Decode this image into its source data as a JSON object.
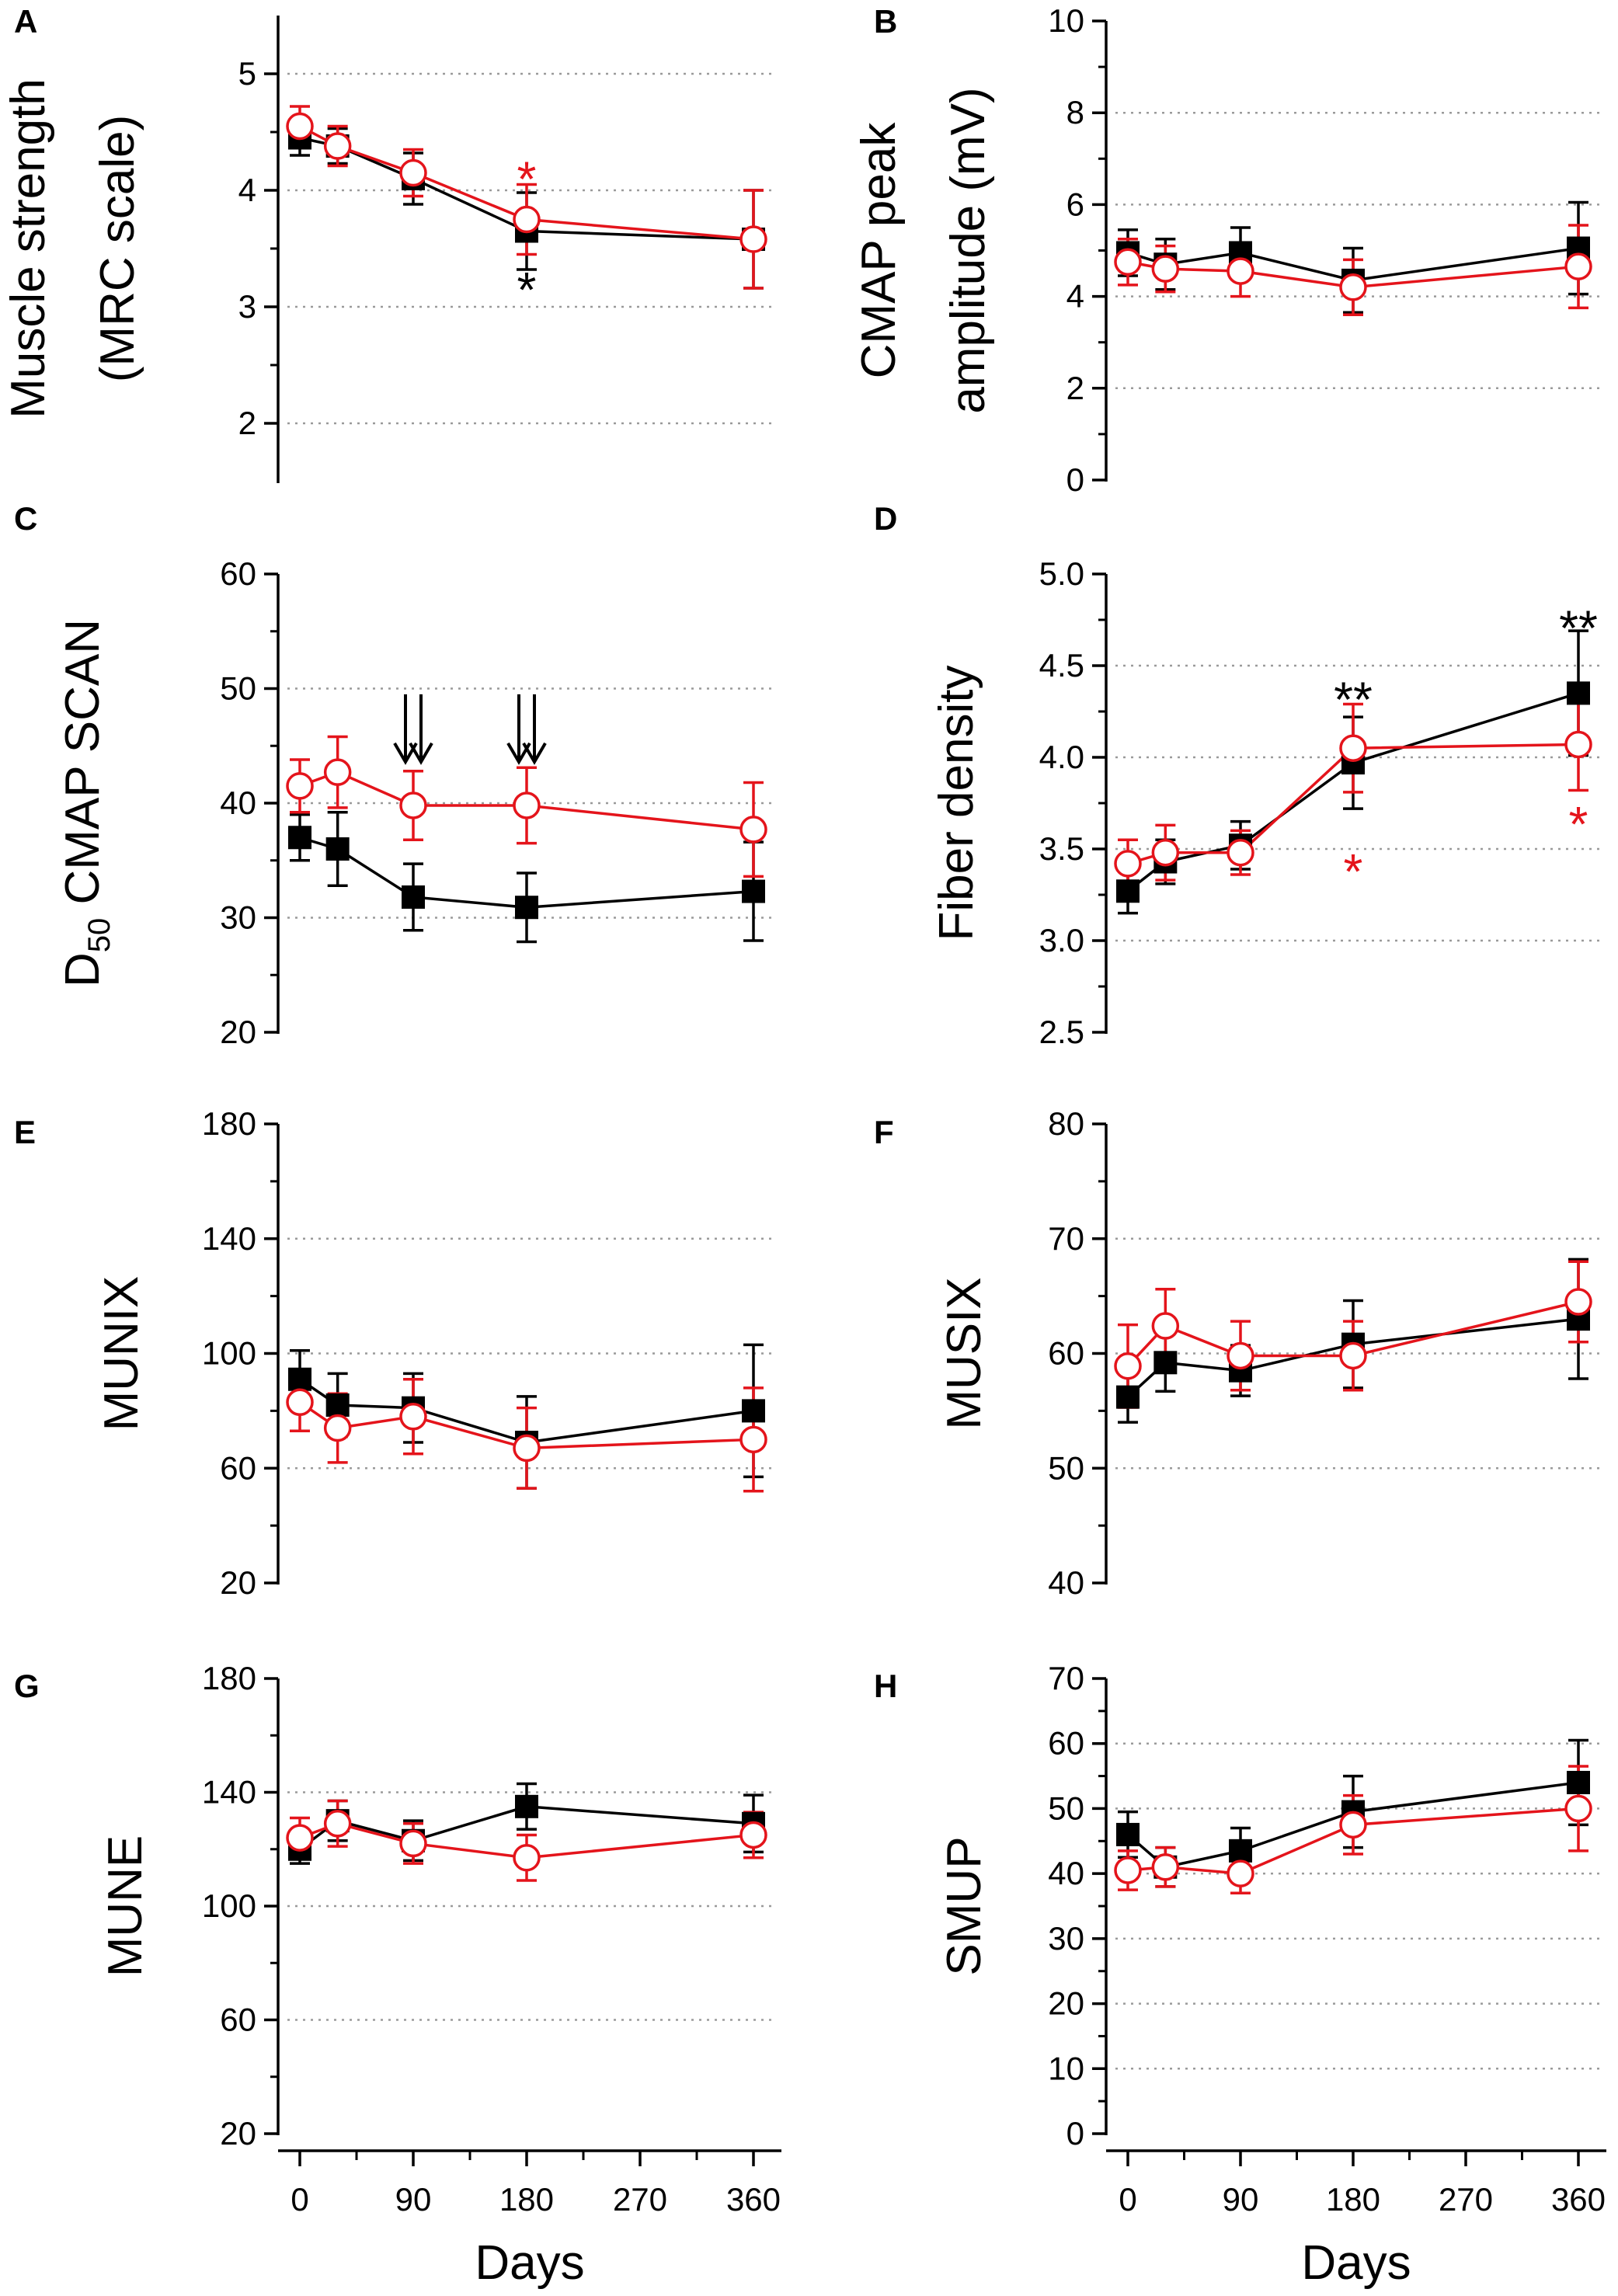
{
  "colors": {
    "black_series": "#000000",
    "red_series": "#e4141b",
    "grid": "#9a9a9a"
  },
  "x_axis_label": "Days",
  "chart_data": [
    {
      "id": "A",
      "type": "line",
      "panel_label": "A",
      "ylabel_lines": [
        "Muscle strength",
        "(MRC scale)"
      ],
      "ylim": [
        1.5,
        5.5
      ],
      "yticks": [
        {
          "v": 2,
          "t": "2"
        },
        {
          "v": 3,
          "t": "3"
        },
        {
          "v": 4,
          "t": "4"
        },
        {
          "v": 5,
          "t": "5"
        }
      ],
      "grid": [
        2,
        3,
        4,
        5
      ],
      "series": [
        {
          "name": "black",
          "marker": "square",
          "x": [
            0,
            30,
            90,
            180,
            360
          ],
          "y": [
            4.45,
            4.38,
            4.1,
            3.65,
            3.58
          ],
          "err": [
            0.15,
            0.15,
            0.22,
            0.33,
            0.42
          ]
        },
        {
          "name": "red",
          "marker": "circle",
          "x": [
            0,
            30,
            90,
            180,
            360
          ],
          "y": [
            4.55,
            4.38,
            4.15,
            3.75,
            3.58
          ],
          "err": [
            0.17,
            0.17,
            0.2,
            0.3,
            0.42
          ]
        }
      ],
      "annotations": [
        {
          "x": 180,
          "y": 4.15,
          "text": "*",
          "color": "red"
        },
        {
          "x": 180,
          "y": 3.2,
          "text": "*",
          "color": "black"
        }
      ],
      "arrows": []
    },
    {
      "id": "B",
      "type": "line",
      "panel_label": "B",
      "ylabel_lines": [
        "CMAP peak",
        "amplitude (mV)"
      ],
      "ylim": [
        0,
        10
      ],
      "yticks": [
        {
          "v": 0,
          "t": "0"
        },
        {
          "v": 2,
          "t": "2"
        },
        {
          "v": 4,
          "t": "4"
        },
        {
          "v": 6,
          "t": "6"
        },
        {
          "v": 8,
          "t": "8"
        },
        {
          "v": 10,
          "t": "10"
        }
      ],
      "grid": [
        2,
        4,
        6,
        8
      ],
      "series": [
        {
          "name": "black",
          "marker": "square",
          "x": [
            0,
            30,
            90,
            180,
            360
          ],
          "y": [
            4.95,
            4.7,
            4.95,
            4.35,
            5.05
          ],
          "err": [
            0.5,
            0.55,
            0.55,
            0.7,
            1.0
          ]
        },
        {
          "name": "red",
          "marker": "circle",
          "x": [
            0,
            30,
            90,
            180,
            360
          ],
          "y": [
            4.75,
            4.6,
            4.55,
            4.2,
            4.65
          ],
          "err": [
            0.5,
            0.5,
            0.55,
            0.6,
            0.9
          ]
        }
      ],
      "annotations": [],
      "arrows": []
    },
    {
      "id": "C",
      "type": "line",
      "panel_label": "C",
      "ylabel_main": "D",
      "ylabel_sub": "50",
      "ylabel_rest": " CMAP SCAN",
      "ylim": [
        20,
        60
      ],
      "yticks": [
        {
          "v": 20,
          "t": "20"
        },
        {
          "v": 30,
          "t": "30"
        },
        {
          "v": 40,
          "t": "40"
        },
        {
          "v": 50,
          "t": "50"
        },
        {
          "v": 60,
          "t": "60"
        }
      ],
      "grid": [
        30,
        40,
        50
      ],
      "series": [
        {
          "name": "black",
          "marker": "square",
          "x": [
            0,
            30,
            90,
            180,
            360
          ],
          "y": [
            37.0,
            36.0,
            31.8,
            30.9,
            32.3
          ],
          "err": [
            2.0,
            3.2,
            2.9,
            3.0,
            4.3
          ]
        },
        {
          "name": "red",
          "marker": "circle",
          "x": [
            0,
            30,
            90,
            180,
            360
          ],
          "y": [
            41.5,
            42.7,
            39.8,
            39.8,
            37.7
          ],
          "err": [
            2.3,
            3.1,
            3.0,
            3.3,
            4.1
          ]
        }
      ],
      "annotations": [],
      "arrows": [
        {
          "x": 90,
          "y_top": 49.5,
          "y_tip": 43.6
        },
        {
          "x": 180,
          "y_top": 49.5,
          "y_tip": 43.6
        }
      ]
    },
    {
      "id": "D",
      "type": "line",
      "panel_label": "D",
      "ylabel_lines": [
        "Fiber density"
      ],
      "ylim": [
        2.5,
        5.0
      ],
      "yticks": [
        {
          "v": 2.5,
          "t": "2.5"
        },
        {
          "v": 3.0,
          "t": "3.0"
        },
        {
          "v": 3.5,
          "t": "3.5"
        },
        {
          "v": 4.0,
          "t": "4.0"
        },
        {
          "v": 4.5,
          "t": "4.5"
        },
        {
          "v": 5.0,
          "t": "5.0"
        }
      ],
      "grid": [
        3.0,
        3.5,
        4.0,
        4.5
      ],
      "series": [
        {
          "name": "black",
          "marker": "square",
          "x": [
            0,
            30,
            90,
            180,
            360
          ],
          "y": [
            3.27,
            3.43,
            3.52,
            3.97,
            4.35
          ],
          "err": [
            0.12,
            0.12,
            0.13,
            0.25,
            0.34
          ]
        },
        {
          "name": "red",
          "marker": "circle",
          "x": [
            0,
            30,
            90,
            180,
            360
          ],
          "y": [
            3.42,
            3.48,
            3.48,
            4.05,
            4.07
          ],
          "err": [
            0.13,
            0.15,
            0.12,
            0.24,
            0.25
          ]
        }
      ],
      "annotations": [
        {
          "x": 180,
          "y": 4.35,
          "text": "**",
          "color": "black"
        },
        {
          "x": 180,
          "y": 3.41,
          "text": "*",
          "color": "red"
        },
        {
          "x": 360,
          "y": 4.74,
          "text": "**",
          "color": "black"
        },
        {
          "x": 360,
          "y": 3.67,
          "text": "*",
          "color": "red"
        }
      ],
      "arrows": []
    },
    {
      "id": "E",
      "type": "line",
      "panel_label": "E",
      "ylabel_lines": [
        "MUNIX"
      ],
      "ylim": [
        20,
        180
      ],
      "yticks": [
        {
          "v": 20,
          "t": "20"
        },
        {
          "v": 60,
          "t": "60"
        },
        {
          "v": 100,
          "t": "100"
        },
        {
          "v": 140,
          "t": "140"
        },
        {
          "v": 180,
          "t": "180"
        }
      ],
      "grid": [
        60,
        100,
        140
      ],
      "series": [
        {
          "name": "black",
          "marker": "square",
          "x": [
            0,
            30,
            90,
            180,
            360
          ],
          "y": [
            91,
            82,
            81,
            69,
            80
          ],
          "err": [
            10,
            11,
            12,
            16,
            23
          ]
        },
        {
          "name": "red",
          "marker": "circle",
          "x": [
            0,
            30,
            90,
            180,
            360
          ],
          "y": [
            83,
            74,
            78,
            67,
            70
          ],
          "err": [
            10,
            12,
            13,
            14,
            18
          ]
        }
      ],
      "annotations": [],
      "arrows": []
    },
    {
      "id": "F",
      "type": "line",
      "panel_label": "F",
      "ylabel_lines": [
        "MUSIX"
      ],
      "ylim": [
        40,
        80
      ],
      "yticks": [
        {
          "v": 40,
          "t": "40"
        },
        {
          "v": 50,
          "t": "50"
        },
        {
          "v": 60,
          "t": "60"
        },
        {
          "v": 70,
          "t": "70"
        },
        {
          "v": 80,
          "t": "80"
        }
      ],
      "grid": [
        50,
        60,
        70
      ],
      "series": [
        {
          "name": "black",
          "marker": "square",
          "x": [
            0,
            30,
            90,
            180,
            360
          ],
          "y": [
            56.2,
            59.2,
            58.5,
            60.8,
            63.0
          ],
          "err": [
            2.2,
            2.5,
            2.2,
            3.8,
            5.2
          ]
        },
        {
          "name": "red",
          "marker": "circle",
          "x": [
            0,
            30,
            90,
            180,
            360
          ],
          "y": [
            58.9,
            62.4,
            59.8,
            59.8,
            64.5
          ],
          "err": [
            3.6,
            3.2,
            3.0,
            3.0,
            3.5
          ]
        }
      ],
      "annotations": [],
      "arrows": []
    },
    {
      "id": "G",
      "type": "line",
      "panel_label": "G",
      "ylabel_lines": [
        "MUNE"
      ],
      "ylim": [
        20,
        180
      ],
      "yticks": [
        {
          "v": 20,
          "t": "20"
        },
        {
          "v": 60,
          "t": "60"
        },
        {
          "v": 100,
          "t": "100"
        },
        {
          "v": 140,
          "t": "140"
        },
        {
          "v": 180,
          "t": "180"
        }
      ],
      "grid": [
        60,
        100,
        140
      ],
      "series": [
        {
          "name": "black",
          "marker": "square",
          "x": [
            0,
            30,
            90,
            180,
            360
          ],
          "y": [
            120,
            130,
            123,
            135,
            129
          ],
          "err": [
            5,
            7,
            7,
            8,
            10
          ]
        },
        {
          "name": "red",
          "marker": "circle",
          "x": [
            0,
            30,
            90,
            180,
            360
          ],
          "y": [
            124,
            129,
            122,
            117,
            125
          ],
          "err": [
            7,
            8,
            7,
            8,
            8
          ]
        }
      ],
      "annotations": [],
      "arrows": []
    },
    {
      "id": "H",
      "type": "line",
      "panel_label": "H",
      "ylabel_lines": [
        "SMUP"
      ],
      "ylim": [
        0,
        70
      ],
      "yticks": [
        {
          "v": 0,
          "t": "0"
        },
        {
          "v": 10,
          "t": "10"
        },
        {
          "v": 20,
          "t": "20"
        },
        {
          "v": 30,
          "t": "30"
        },
        {
          "v": 40,
          "t": "40"
        },
        {
          "v": 50,
          "t": "50"
        },
        {
          "v": 60,
          "t": "60"
        },
        {
          "v": 70,
          "t": "70"
        }
      ],
      "grid": [
        10,
        20,
        30,
        40,
        50,
        60
      ],
      "series": [
        {
          "name": "black",
          "marker": "square",
          "x": [
            0,
            30,
            90,
            180,
            360
          ],
          "y": [
            46,
            41,
            43.5,
            49.5,
            54
          ],
          "err": [
            3.5,
            3,
            3.5,
            5.5,
            6.5
          ]
        },
        {
          "name": "red",
          "marker": "circle",
          "x": [
            0,
            30,
            90,
            180,
            360
          ],
          "y": [
            40.5,
            41,
            40,
            47.5,
            50
          ],
          "err": [
            3,
            3,
            3,
            4.5,
            6.5
          ]
        }
      ],
      "annotations": [],
      "arrows": []
    }
  ],
  "x_axis": {
    "xlim": [
      -10,
      370
    ],
    "ticks": [
      {
        "v": 0,
        "t": "0"
      },
      {
        "v": 90,
        "t": "90"
      },
      {
        "v": 180,
        "t": "180"
      },
      {
        "v": 270,
        "t": "270"
      },
      {
        "v": 360,
        "t": "360"
      }
    ],
    "minor": [
      45,
      135,
      225,
      315
    ]
  }
}
